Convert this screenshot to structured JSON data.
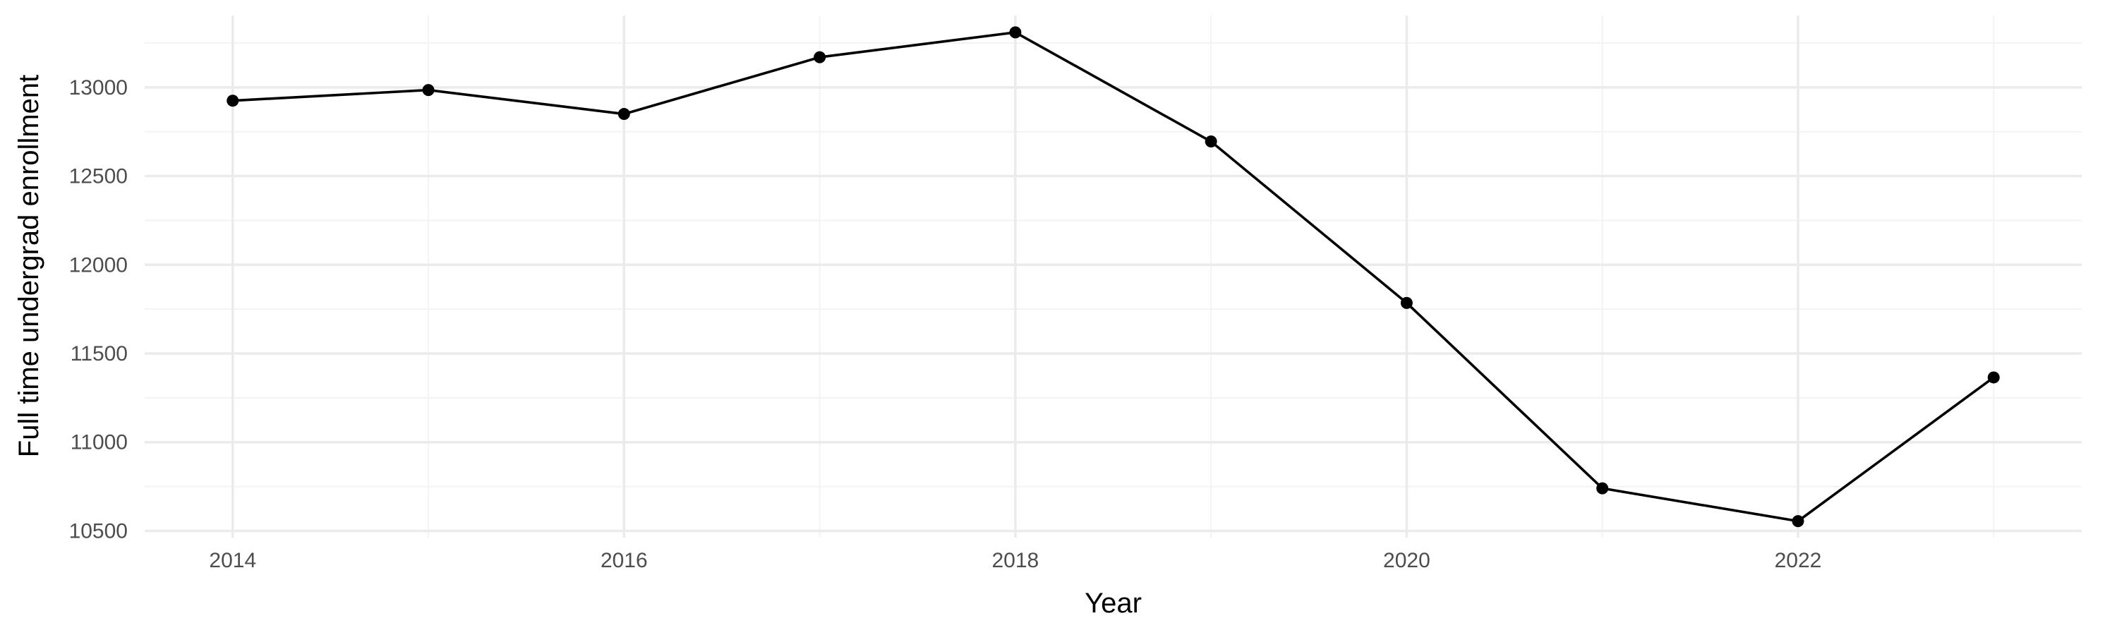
{
  "chart_data": {
    "type": "line",
    "title": "",
    "xlabel": "Year",
    "ylabel": "Full time undergrad enrollment",
    "x": [
      2014,
      2015,
      2016,
      2017,
      2018,
      2019,
      2020,
      2021,
      2022,
      2023
    ],
    "series": [
      {
        "values": [
          12925,
          12985,
          12850,
          13170,
          13310,
          12695,
          11785,
          10740,
          10555,
          11365
        ]
      }
    ],
    "xlim": [
      2013.55,
      2023.45
    ],
    "ylim": [
      10462,
      13405
    ],
    "x_ticks": [
      2014,
      2016,
      2018,
      2020,
      2022
    ],
    "y_ticks": [
      10500,
      11000,
      11500,
      12000,
      12500,
      13000
    ],
    "grid": true,
    "legend": "none",
    "colors": {
      "line": "#000000",
      "grid": "#ebebeb",
      "background": "#ffffff"
    }
  }
}
